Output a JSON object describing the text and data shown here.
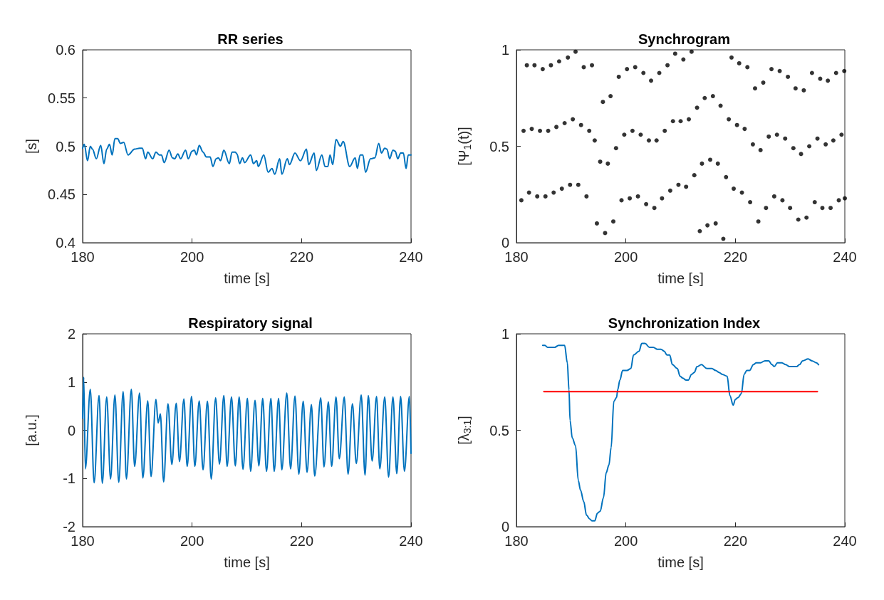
{
  "chart_data": [
    {
      "type": "line",
      "title": "RR series",
      "xlabel": "time [s]",
      "ylabel": "[s]",
      "xlim": [
        180,
        240
      ],
      "xticks": [
        180,
        200,
        220,
        240
      ],
      "ylim": [
        0.4,
        0.6
      ],
      "yticks": [
        0.4,
        0.45,
        0.5,
        0.55,
        0.6
      ],
      "marker": "none",
      "line_style": "solid",
      "series": [
        {
          "color": "#0072bd",
          "x": [
            180.0,
            180.3,
            180.9,
            181.4,
            181.8,
            182.5,
            183.3,
            183.9,
            184.4,
            184.9,
            185.4,
            185.9,
            186.4,
            186.9,
            187.5,
            188.3,
            189.5,
            190.4,
            190.9,
            191.5,
            191.9,
            192.8,
            193.4,
            194.0,
            194.4,
            194.9,
            195.8,
            196.4,
            196.8,
            197.4,
            197.9,
            198.8,
            199.3,
            200.0,
            200.4,
            200.8,
            201.3,
            202.0,
            202.6,
            203.3,
            203.8,
            204.4,
            204.8,
            205.2,
            205.8,
            206.8,
            207.3,
            207.9,
            208.2,
            208.7,
            209.2,
            209.6,
            210.7,
            211.2,
            211.8,
            212.1,
            213.1,
            213.9,
            214.6,
            215.1,
            216.0,
            216.4,
            217.4,
            217.8,
            218.8,
            219.8,
            220.9,
            221.3,
            222.3,
            222.7,
            223.7,
            224.3,
            224.8,
            225.2,
            225.7,
            226.3,
            227.1,
            227.6,
            228.8,
            229.8,
            230.2,
            230.7,
            231.2,
            231.7,
            232.6,
            233.4,
            234.1,
            234.6,
            235.2,
            235.6,
            236.1,
            236.7,
            237.1,
            237.6,
            238.1,
            238.6,
            239.1,
            239.5,
            240.0
          ],
          "values": [
            0.498,
            0.502,
            0.485,
            0.5,
            0.497,
            0.487,
            0.501,
            0.482,
            0.497,
            0.502,
            0.491,
            0.508,
            0.508,
            0.503,
            0.504,
            0.491,
            0.497,
            0.498,
            0.498,
            0.487,
            0.494,
            0.487,
            0.494,
            0.491,
            0.491,
            0.483,
            0.496,
            0.488,
            0.487,
            0.492,
            0.487,
            0.496,
            0.487,
            0.495,
            0.496,
            0.491,
            0.501,
            0.494,
            0.489,
            0.489,
            0.479,
            0.487,
            0.488,
            0.485,
            0.496,
            0.482,
            0.494,
            0.494,
            0.492,
            0.482,
            0.488,
            0.483,
            0.491,
            0.482,
            0.485,
            0.479,
            0.491,
            0.473,
            0.477,
            0.471,
            0.487,
            0.471,
            0.487,
            0.481,
            0.493,
            0.485,
            0.497,
            0.481,
            0.493,
            0.475,
            0.491,
            0.479,
            0.479,
            0.491,
            0.481,
            0.507,
            0.5,
            0.505,
            0.479,
            0.488,
            0.477,
            0.491,
            0.491,
            0.473,
            0.487,
            0.488,
            0.503,
            0.493,
            0.498,
            0.497,
            0.487,
            0.496,
            0.495,
            0.487,
            0.493,
            0.493,
            0.477,
            0.491,
            0.491
          ]
        }
      ]
    },
    {
      "type": "scatter",
      "title": "Synchrogram",
      "xlabel": "time [s]",
      "ylabel": "[Ψ$_{1}$(t)]",
      "xlim": [
        180,
        240
      ],
      "xticks": [
        180,
        200,
        220,
        240
      ],
      "ylim": [
        0,
        1
      ],
      "yticks": [
        0,
        0.5,
        1
      ],
      "marker": "circle",
      "series": [
        {
          "color": "#000000",
          "x": [
            181.9,
            183.3,
            184.8,
            186.3,
            187.8,
            189.4,
            190.8,
            192.3,
            193.8,
            195.8,
            197.2,
            198.7,
            200.2,
            201.7,
            203.2,
            204.6,
            206.1,
            207.6,
            209.0,
            210.5,
            212.0,
            219.3,
            220.7,
            222.2,
            223.6,
            225.1,
            226.6,
            228.1,
            229.6,
            231.0,
            232.5,
            234.0,
            235.5,
            236.9,
            238.4,
            239.9,
            181.3,
            182.8,
            184.3,
            185.8,
            187.3,
            188.8,
            190.3,
            191.8,
            193.3,
            194.3,
            195.3,
            196.7,
            198.2,
            199.7,
            201.2,
            202.7,
            204.2,
            205.6,
            207.1,
            208.6,
            210.0,
            211.5,
            213.0,
            214.4,
            215.9,
            217.3,
            218.8,
            220.3,
            221.7,
            223.2,
            224.6,
            226.1,
            227.6,
            229.1,
            230.6,
            232.0,
            233.5,
            235.0,
            236.5,
            237.9,
            239.4,
            180.9,
            182.3,
            183.8,
            185.3,
            186.8,
            188.3,
            189.8,
            191.3,
            192.8,
            194.7,
            196.2,
            197.7,
            199.2,
            200.7,
            202.2,
            203.7,
            205.2,
            206.6,
            208.1,
            209.6,
            211.0,
            212.5,
            213.9,
            215.4,
            216.8,
            218.3,
            219.7,
            221.2,
            222.7,
            224.2,
            225.6,
            227.1,
            228.6,
            230.0,
            231.5,
            233.0,
            234.5,
            235.9,
            237.4,
            238.9,
            240.0,
            213.5,
            214.9,
            216.4,
            217.8
          ],
          "values": [
            0.92,
            0.92,
            0.9,
            0.92,
            0.94,
            0.96,
            0.99,
            0.91,
            0.92,
            0.73,
            0.76,
            0.86,
            0.9,
            0.91,
            0.88,
            0.84,
            0.88,
            0.92,
            0.98,
            0.95,
            0.99,
            0.96,
            0.93,
            0.91,
            0.8,
            0.83,
            0.9,
            0.89,
            0.86,
            0.8,
            0.79,
            0.88,
            0.85,
            0.84,
            0.88,
            0.89,
            0.58,
            0.59,
            0.58,
            0.58,
            0.6,
            0.62,
            0.64,
            0.61,
            0.58,
            0.53,
            0.42,
            0.41,
            0.49,
            0.56,
            0.58,
            0.56,
            0.53,
            0.53,
            0.58,
            0.63,
            0.63,
            0.64,
            0.7,
            0.75,
            0.76,
            0.71,
            0.64,
            0.61,
            0.59,
            0.51,
            0.48,
            0.55,
            0.56,
            0.54,
            0.49,
            0.46,
            0.5,
            0.54,
            0.51,
            0.53,
            0.56,
            0.22,
            0.26,
            0.24,
            0.24,
            0.26,
            0.28,
            0.3,
            0.3,
            0.24,
            0.1,
            0.05,
            0.11,
            0.22,
            0.23,
            0.24,
            0.2,
            0.18,
            0.23,
            0.27,
            0.3,
            0.29,
            0.35,
            0.41,
            0.43,
            0.41,
            0.34,
            0.28,
            0.26,
            0.21,
            0.11,
            0.18,
            0.24,
            0.22,
            0.18,
            0.12,
            0.13,
            0.21,
            0.18,
            0.18,
            0.22,
            0.23,
            0.06,
            0.09,
            0.1,
            0.02
          ]
        }
      ]
    },
    {
      "type": "line",
      "title": "Respiratory signal",
      "xlabel": "time [s]",
      "ylabel": "[a.u.]",
      "xlim": [
        180,
        240
      ],
      "xticks": [
        180,
        200,
        220,
        240
      ],
      "ylim": [
        -2,
        2
      ],
      "yticks": [
        -2,
        -1,
        0,
        1,
        2
      ],
      "marker": "none",
      "line_style": "solid",
      "series": [
        {
          "color": "#0072bd",
          "x": [
            180.0,
            180.2,
            180.5,
            181.4,
            182.1,
            183.0,
            183.6,
            184.4,
            185.1,
            185.9,
            186.6,
            187.4,
            188.0,
            188.9,
            189.5,
            190.4,
            191.0,
            191.9,
            192.5,
            193.4,
            193.8,
            194.2,
            194.8,
            195.6,
            196.3,
            197.1,
            197.7,
            198.5,
            199.1,
            199.9,
            200.5,
            201.3,
            202.0,
            202.8,
            203.5,
            204.3,
            205.0,
            205.8,
            206.4,
            207.2,
            207.9,
            208.6,
            209.3,
            210.1,
            210.7,
            211.5,
            212.2,
            212.9,
            213.6,
            214.4,
            215.0,
            215.8,
            216.4,
            217.3,
            218.0,
            218.8,
            219.5,
            220.3,
            221.0,
            221.8,
            222.4,
            223.5,
            224.1,
            224.9,
            225.5,
            226.3,
            226.9,
            227.8,
            228.5,
            229.3,
            230.0,
            230.9,
            231.6,
            232.2,
            232.9,
            233.7,
            234.3,
            235.2,
            235.9,
            236.7,
            237.4,
            238.1,
            238.8,
            239.7,
            240.0
          ],
          "values": [
            0.25,
            1.1,
            -0.8,
            0.85,
            -1.09,
            0.72,
            -1.1,
            0.69,
            -1.01,
            0.73,
            -1.08,
            0.8,
            -1.01,
            0.85,
            -0.75,
            0.77,
            -0.99,
            0.61,
            -0.96,
            0.64,
            0.15,
            0.34,
            -1.07,
            0.55,
            -0.71,
            0.56,
            -0.65,
            0.65,
            -0.75,
            0.7,
            -0.75,
            0.61,
            -0.82,
            0.6,
            -1.01,
            0.67,
            -0.7,
            0.72,
            -0.75,
            0.69,
            -0.74,
            0.69,
            -0.81,
            0.66,
            -0.85,
            0.62,
            -0.74,
            0.66,
            -0.85,
            0.66,
            -0.85,
            0.66,
            -0.82,
            0.77,
            -0.8,
            0.71,
            -0.91,
            0.6,
            -0.87,
            0.53,
            -0.95,
            0.67,
            -0.76,
            0.59,
            -0.75,
            0.69,
            -0.59,
            0.69,
            -0.91,
            0.55,
            -0.69,
            0.73,
            -0.93,
            0.72,
            -0.64,
            0.7,
            -0.8,
            0.69,
            -0.97,
            0.69,
            -0.9,
            0.7,
            -0.85,
            0.7,
            -0.48
          ]
        }
      ]
    },
    {
      "type": "line",
      "title": "Synchronization Index",
      "xlabel": "time [s]",
      "ylabel": "[λ$_{3:1}$]",
      "xlim": [
        180,
        240
      ],
      "xticks": [
        180,
        200,
        220,
        240
      ],
      "ylim": [
        0,
        1
      ],
      "yticks": [
        0,
        0.5,
        1
      ],
      "marker": "none",
      "line_style": "solid",
      "series": [
        {
          "color": "#0072bd",
          "x": [
            184.8,
            185.2,
            185.7,
            186.3,
            187.0,
            187.7,
            188.8,
            189.3,
            189.6,
            189.8,
            190.2,
            190.8,
            191.3,
            191.7,
            192.3,
            192.8,
            193.4,
            193.8,
            194.3,
            194.8,
            195.3,
            195.9,
            196.4,
            196.9,
            197.3,
            197.8,
            198.3,
            198.5,
            198.9,
            199.4,
            200.2,
            200.9,
            201.4,
            202.4,
            202.9,
            203.5,
            204.3,
            205.0,
            205.7,
            206.4,
            207.0,
            207.5,
            208.0,
            208.5,
            209.4,
            209.9,
            210.4,
            211.0,
            211.4,
            212.0,
            212.5,
            213.0,
            213.8,
            214.8,
            215.7,
            216.4,
            217.0,
            217.6,
            218.5,
            219.0,
            219.6,
            220.0,
            220.5,
            221.1,
            221.6,
            222.1,
            222.6,
            223.3,
            223.8,
            224.6,
            225.4,
            226.1,
            226.7,
            227.1,
            227.7,
            228.5,
            229.2,
            229.9,
            230.7,
            231.2,
            231.7,
            232.3,
            233.3,
            234.0,
            234.8,
            235.2
          ],
          "values": [
            0.94,
            0.94,
            0.93,
            0.93,
            0.93,
            0.94,
            0.94,
            0.85,
            0.71,
            0.55,
            0.46,
            0.42,
            0.24,
            0.19,
            0.13,
            0.06,
            0.04,
            0.03,
            0.03,
            0.07,
            0.08,
            0.15,
            0.28,
            0.32,
            0.41,
            0.65,
            0.67,
            0.71,
            0.76,
            0.81,
            0.81,
            0.82,
            0.89,
            0.91,
            0.95,
            0.95,
            0.93,
            0.93,
            0.92,
            0.92,
            0.91,
            0.89,
            0.89,
            0.84,
            0.82,
            0.78,
            0.77,
            0.76,
            0.76,
            0.79,
            0.8,
            0.83,
            0.84,
            0.82,
            0.82,
            0.81,
            0.8,
            0.79,
            0.78,
            0.68,
            0.63,
            0.66,
            0.67,
            0.69,
            0.79,
            0.81,
            0.81,
            0.84,
            0.85,
            0.85,
            0.86,
            0.86,
            0.84,
            0.83,
            0.85,
            0.85,
            0.84,
            0.83,
            0.83,
            0.83,
            0.84,
            0.86,
            0.87,
            0.86,
            0.85,
            0.84
          ]
        },
        {
          "color": "#ff0000",
          "x": [
            185,
            235
          ],
          "values": [
            0.7,
            0.7
          ]
        }
      ]
    }
  ]
}
